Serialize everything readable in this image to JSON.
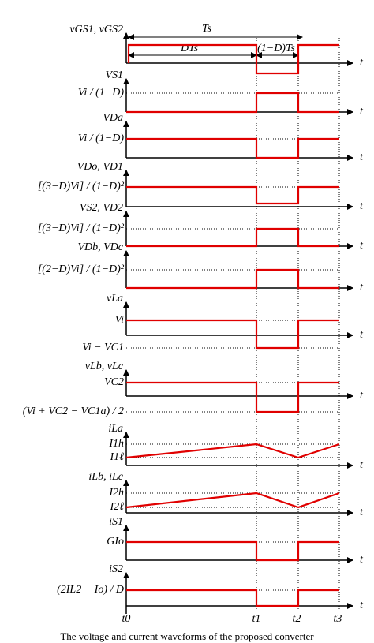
{
  "period_labels": {
    "period": "Ts",
    "on_time": "DTs",
    "off_time": "(1−D)Ts"
  },
  "axis_label": "t",
  "panels": [
    {
      "label": "vGS1, vGS2",
      "levels": []
    },
    {
      "label": "VS1",
      "levels": [
        "Vi / (1−D)"
      ]
    },
    {
      "label": "VDa",
      "levels": [
        "Vi / (1−D)"
      ]
    },
    {
      "label": "VDo, VD1",
      "levels": [
        "[(3−D)Vi] / (1−D)²"
      ]
    },
    {
      "label": "VS2, VD2",
      "levels": [
        "[(3−D)Vi] / (1−D)²"
      ]
    },
    {
      "label": "VDb, VDc",
      "levels": [
        "[(2−D)Vi] / (1−D)²"
      ]
    },
    {
      "label": "vLa",
      "levels": [
        "Vi",
        "Vi − VC1"
      ]
    },
    {
      "label": "vLb, vLc",
      "levels": [
        "VC2",
        "(Vi + VC2 − VC1a) / 2"
      ]
    },
    {
      "label": "iLa",
      "levels": [
        "I1h",
        "I1ℓ"
      ]
    },
    {
      "label": "iLb, iLc",
      "levels": [
        "I2h",
        "I2ℓ"
      ]
    },
    {
      "label": "iS1",
      "levels": [
        "GIo"
      ]
    },
    {
      "label": "iS2",
      "levels": [
        "(2IL2 − Io) / D"
      ]
    }
  ],
  "time_labels": [
    "t0",
    "t1",
    "t2",
    "t3"
  ],
  "caption": "The voltage and current waveforms of the proposed converter"
}
